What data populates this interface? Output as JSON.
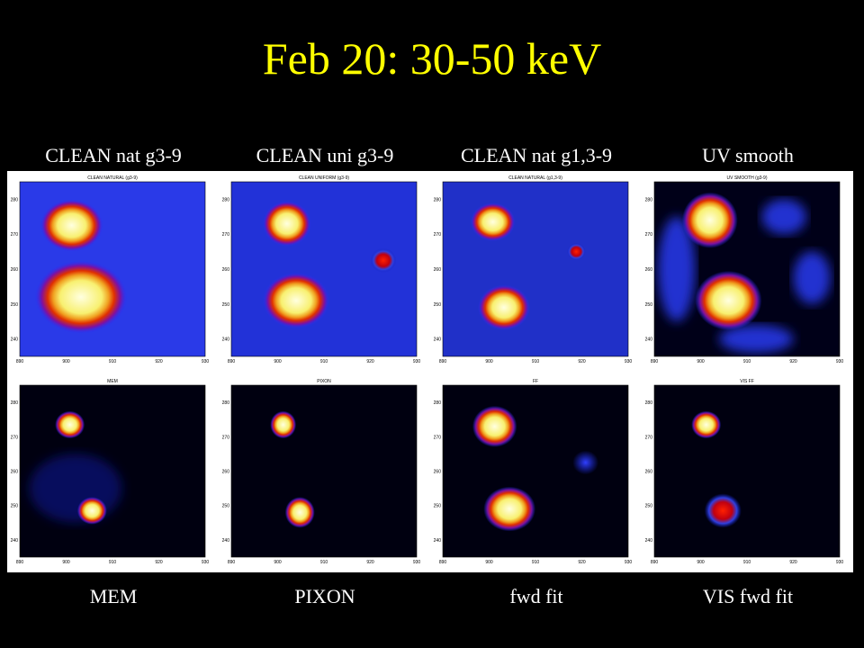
{
  "slide": {
    "title": "Feb 20: 30-50 keV",
    "panels": [
      {
        "caption": "CLEAN nat g3-9",
        "plot_title": "CLEAN NATURAL (g3-9)"
      },
      {
        "caption": "CLEAN uni g3-9",
        "plot_title": "CLEAN UNIFORM (g3-9)"
      },
      {
        "caption": "CLEAN nat g1,3-9",
        "plot_title": "CLEAN NATURAL (g1,3-9)"
      },
      {
        "caption": "UV smooth",
        "plot_title": "UV SMOOTH (g3-9)"
      },
      {
        "caption": "MEM",
        "plot_title": "MEM"
      },
      {
        "caption": "PIXON",
        "plot_title": "PIXON"
      },
      {
        "caption": "fwd fit",
        "plot_title": "FF"
      },
      {
        "caption": "VIS fwd fit",
        "plot_title": "VIS FF"
      }
    ],
    "yticks": [
      280,
      270,
      260,
      250,
      240
    ],
    "xticks": [
      890,
      900,
      910,
      920,
      930
    ]
  }
}
